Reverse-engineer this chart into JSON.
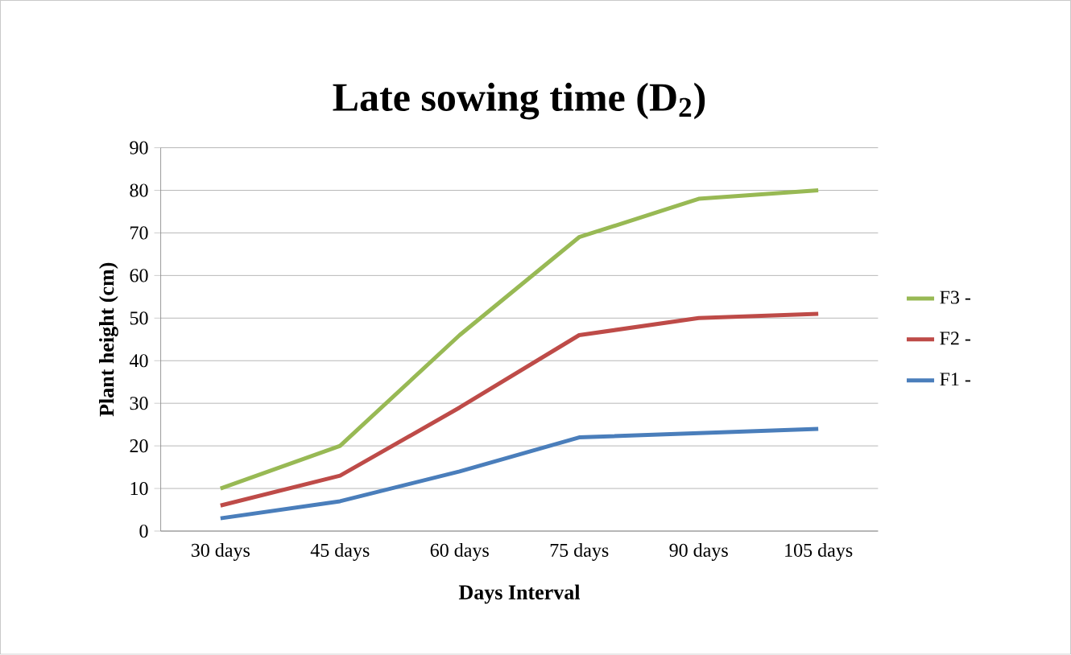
{
  "chart_data": {
    "type": "line",
    "title": "Late sowing time (D$_{2}$)",
    "xlabel": "Days Interval",
    "ylabel": "Plant height (cm)",
    "categories": [
      "30 days",
      "45 days",
      "60 days",
      "75 days",
      "90 days",
      "105 days"
    ],
    "series": [
      {
        "name": "F1 -",
        "color": "#4a7ebb",
        "values": [
          3,
          7,
          14,
          22,
          23,
          24
        ]
      },
      {
        "name": "F2 -",
        "color": "#be4b48",
        "values": [
          6,
          13,
          29,
          46,
          50,
          51
        ]
      },
      {
        "name": "F3 -",
        "color": "#98b954",
        "values": [
          10,
          20,
          46,
          69,
          78,
          80
        ]
      }
    ],
    "ylim": [
      0,
      90
    ],
    "yticks": [
      0,
      10,
      20,
      30,
      40,
      50,
      60,
      70,
      80,
      90
    ],
    "grid": "y",
    "legend": "right",
    "marker": "none",
    "line_style": "solid"
  }
}
